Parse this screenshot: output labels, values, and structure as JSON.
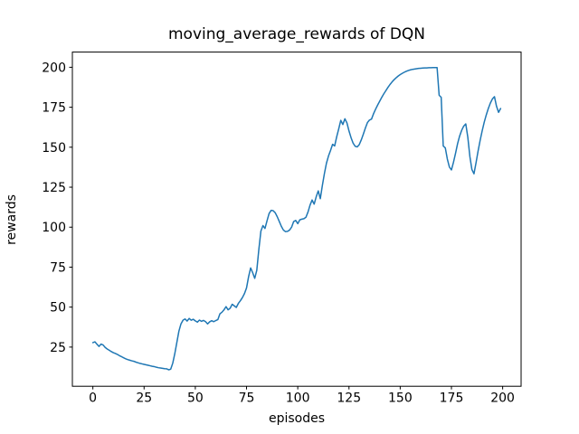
{
  "figure": {
    "title": "moving_average_rewards of DQN",
    "background": "#ffffff"
  },
  "chart_data": {
    "type": "line",
    "title": "moving_average_rewards of DQN",
    "xlabel": "episodes",
    "ylabel": "rewards",
    "line_color": "#1f77b4",
    "line_width": 1.5,
    "spine_color": "#000000",
    "grid": false,
    "legend": null,
    "xlim": [
      -10,
      209
    ],
    "ylim": [
      0.5,
      209.5
    ],
    "x_ticks": [
      0,
      25,
      50,
      75,
      100,
      125,
      150,
      175,
      200
    ],
    "y_ticks": [
      25,
      50,
      75,
      100,
      125,
      150,
      175,
      200
    ],
    "x_start": 0,
    "x_step": 1,
    "series": [
      {
        "name": "moving_average_rewards",
        "values": [
          27.8,
          28.3,
          26.8,
          25.4,
          26.9,
          26.3,
          24.8,
          23.8,
          23.0,
          22.2,
          21.5,
          21.0,
          20.4,
          19.6,
          19.0,
          18.3,
          17.7,
          17.2,
          16.8,
          16.4,
          16.1,
          15.6,
          15.2,
          14.8,
          14.5,
          14.2,
          13.9,
          13.6,
          13.3,
          13.0,
          12.8,
          12.4,
          12.1,
          11.9,
          11.7,
          11.5,
          11.4,
          10.8,
          11.2,
          15.0,
          21.0,
          28.0,
          35.0,
          39.5,
          41.8,
          42.6,
          41.3,
          42.9,
          41.8,
          42.4,
          41.4,
          40.6,
          41.9,
          41.1,
          41.7,
          40.9,
          39.5,
          40.8,
          41.5,
          40.9,
          41.6,
          42.2,
          45.8,
          46.8,
          48.3,
          50.3,
          48.3,
          49.3,
          51.8,
          50.8,
          49.8,
          52.3,
          54.0,
          56.0,
          58.5,
          62.0,
          69.0,
          74.5,
          71.5,
          68.0,
          73.0,
          86.0,
          97.5,
          101.0,
          99.2,
          104.0,
          108.5,
          110.5,
          110.3,
          109.0,
          106.5,
          103.5,
          100.5,
          98.2,
          97.2,
          97.4,
          98.2,
          100.0,
          103.5,
          104.2,
          102.2,
          104.6,
          105.0,
          105.3,
          106.2,
          109.5,
          113.8,
          117.0,
          114.4,
          119.0,
          122.7,
          117.8,
          126.0,
          133.5,
          140.0,
          144.5,
          148.0,
          151.8,
          150.8,
          156.5,
          161.5,
          166.8,
          164.2,
          167.8,
          165.2,
          160.2,
          156.0,
          152.6,
          150.6,
          150.2,
          151.6,
          154.6,
          158.2,
          162.0,
          165.4,
          167.0,
          167.6,
          171.0,
          173.8,
          176.4,
          178.8,
          181.2,
          183.4,
          185.4,
          187.4,
          189.2,
          190.8,
          192.2,
          193.4,
          194.5,
          195.4,
          196.2,
          196.9,
          197.5,
          198.0,
          198.4,
          198.7,
          198.9,
          199.1,
          199.3,
          199.4,
          199.5,
          199.6,
          199.6,
          199.7,
          199.7,
          199.8,
          199.8,
          199.8,
          182.5,
          181.2,
          150.8,
          149.6,
          142.6,
          137.6,
          135.8,
          140.6,
          146.2,
          152.2,
          157.0,
          160.6,
          163.2,
          164.6,
          156.2,
          144.2,
          136.0,
          133.4,
          140.2,
          147.6,
          154.2,
          160.2,
          165.6,
          170.2,
          174.2,
          177.6,
          180.2,
          181.6,
          175.6,
          171.8,
          174.2
        ]
      }
    ]
  }
}
